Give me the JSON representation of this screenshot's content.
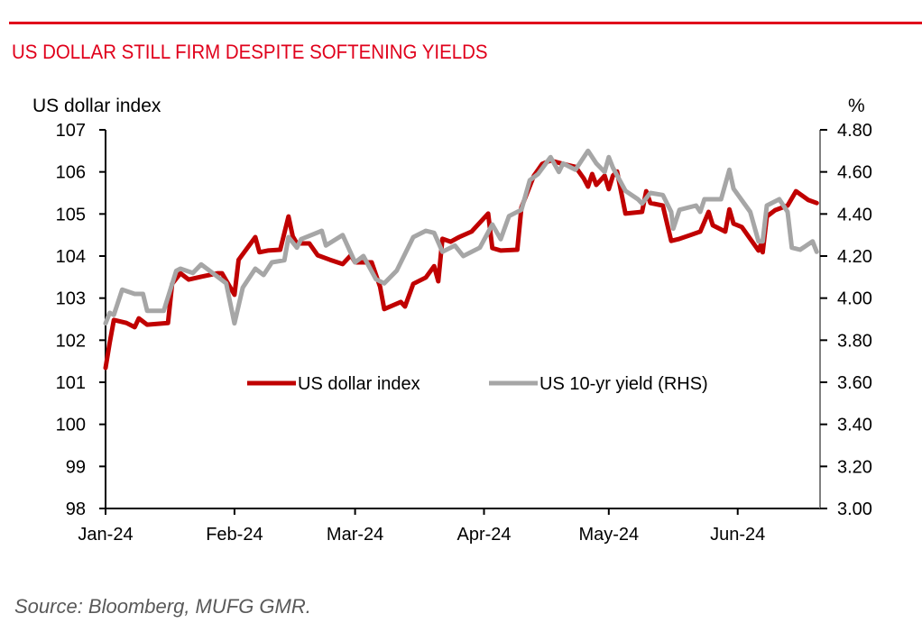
{
  "header": {
    "title": "US DOLLAR STILL FIRM DESPITE SOFTENING YIELDS"
  },
  "footer": {
    "source": "Source: Bloomberg, MUFG GMR."
  },
  "colors": {
    "title": "#e0001b",
    "dollar_series": "#c00000",
    "yield_series": "#a6a6a6"
  },
  "chart_data": {
    "type": "line",
    "title": "US DOLLAR STILL FIRM DESPITE SOFTENING YIELDS",
    "xlabel": "",
    "ylabel": "US dollar index",
    "y2label": "%",
    "x_unit": "days since 1 Jan 2024",
    "xlim": [
      0,
      172
    ],
    "ylim": [
      98,
      107
    ],
    "y2lim": [
      3.0,
      4.8
    ],
    "grid": false,
    "legend_position": "center",
    "x_ticks": [
      {
        "day": 0,
        "label": "Jan-24"
      },
      {
        "day": 31,
        "label": "Feb-24"
      },
      {
        "day": 60,
        "label": "Mar-24"
      },
      {
        "day": 91,
        "label": "Apr-24"
      },
      {
        "day": 121,
        "label": "May-24"
      },
      {
        "day": 152,
        "label": "Jun-24"
      }
    ],
    "y_ticks": [
      "98",
      "99",
      "100",
      "101",
      "102",
      "103",
      "104",
      "105",
      "106",
      "107"
    ],
    "y2_ticks": [
      "3.00",
      "3.20",
      "3.40",
      "3.60",
      "3.80",
      "4.00",
      "4.20",
      "4.40",
      "4.60",
      "4.80"
    ],
    "series": [
      {
        "name": "US dollar index",
        "axis": "left",
        "points": [
          [
            0,
            101.34
          ],
          [
            1,
            101.94
          ],
          [
            2,
            102.48
          ],
          [
            5,
            102.41
          ],
          [
            7,
            102.31
          ],
          [
            8,
            102.52
          ],
          [
            10,
            102.37
          ],
          [
            15,
            102.41
          ],
          [
            16,
            103.34
          ],
          [
            18,
            103.59
          ],
          [
            20,
            103.44
          ],
          [
            23,
            103.51
          ],
          [
            27,
            103.59
          ],
          [
            28,
            103.59
          ],
          [
            31,
            103.08
          ],
          [
            32,
            103.91
          ],
          [
            36,
            104.45
          ],
          [
            37,
            104.09
          ],
          [
            39,
            104.13
          ],
          [
            42,
            104.15
          ],
          [
            44,
            104.94
          ],
          [
            45,
            104.47
          ],
          [
            46,
            104.3
          ],
          [
            49,
            104.3
          ],
          [
            51,
            104.02
          ],
          [
            54,
            103.91
          ],
          [
            57,
            103.81
          ],
          [
            59,
            104.02
          ],
          [
            60,
            103.85
          ],
          [
            64,
            103.85
          ],
          [
            66,
            103.27
          ],
          [
            67,
            102.74
          ],
          [
            71,
            102.91
          ],
          [
            72,
            102.8
          ],
          [
            74,
            103.34
          ],
          [
            77,
            103.49
          ],
          [
            79,
            103.76
          ],
          [
            80,
            103.4
          ],
          [
            81,
            104.41
          ],
          [
            83,
            104.34
          ],
          [
            85,
            104.45
          ],
          [
            88,
            104.58
          ],
          [
            92,
            105.01
          ],
          [
            93,
            104.19
          ],
          [
            95,
            104.13
          ],
          [
            99,
            104.15
          ],
          [
            100,
            105.16
          ],
          [
            103,
            105.91
          ],
          [
            105,
            106.19
          ],
          [
            107,
            106.27
          ],
          [
            110,
            106.19
          ],
          [
            113,
            106.12
          ],
          [
            115,
            105.84
          ],
          [
            116,
            105.65
          ],
          [
            117,
            105.95
          ],
          [
            118,
            105.69
          ],
          [
            120,
            105.91
          ],
          [
            121,
            105.59
          ],
          [
            122,
            105.91
          ],
          [
            123,
            106.01
          ],
          [
            125,
            105.01
          ],
          [
            129,
            105.05
          ],
          [
            130,
            105.54
          ],
          [
            131,
            105.26
          ],
          [
            134,
            105.2
          ],
          [
            136,
            104.36
          ],
          [
            138,
            104.41
          ],
          [
            143,
            104.58
          ],
          [
            145,
            105.05
          ],
          [
            146,
            104.73
          ],
          [
            149,
            104.58
          ],
          [
            150,
            105.11
          ],
          [
            151,
            104.77
          ],
          [
            153,
            104.69
          ],
          [
            155,
            104.41
          ],
          [
            157,
            104.13
          ],
          [
            157.5,
            104.26
          ],
          [
            158,
            104.09
          ],
          [
            159,
            104.94
          ],
          [
            161,
            105.09
          ],
          [
            164,
            105.2
          ],
          [
            166,
            105.54
          ],
          [
            169,
            105.33
          ],
          [
            171,
            105.26
          ]
        ]
      },
      {
        "name": "US 10-yr yield (RHS)",
        "axis": "right",
        "points": [
          [
            0,
            3.88
          ],
          [
            1,
            3.93
          ],
          [
            2,
            3.92
          ],
          [
            4,
            4.04
          ],
          [
            7,
            4.02
          ],
          [
            9,
            4.02
          ],
          [
            10,
            3.94
          ],
          [
            14,
            3.94
          ],
          [
            17,
            4.13
          ],
          [
            18,
            4.14
          ],
          [
            21,
            4.12
          ],
          [
            23,
            4.16
          ],
          [
            25,
            4.13
          ],
          [
            29,
            4.07
          ],
          [
            31,
            3.88
          ],
          [
            33,
            4.05
          ],
          [
            36,
            4.14
          ],
          [
            38,
            4.11
          ],
          [
            40,
            4.17
          ],
          [
            43,
            4.18
          ],
          [
            44,
            4.29
          ],
          [
            46,
            4.24
          ],
          [
            47,
            4.28
          ],
          [
            52,
            4.32
          ],
          [
            53,
            4.25
          ],
          [
            57,
            4.3
          ],
          [
            60,
            4.17
          ],
          [
            62,
            4.2
          ],
          [
            65,
            4.09
          ],
          [
            67,
            4.07
          ],
          [
            70,
            4.13
          ],
          [
            74,
            4.29
          ],
          [
            77,
            4.32
          ],
          [
            79,
            4.31
          ],
          [
            81,
            4.22
          ],
          [
            84,
            4.25
          ],
          [
            86,
            4.2
          ],
          [
            90,
            4.24
          ],
          [
            93,
            4.35
          ],
          [
            95,
            4.28
          ],
          [
            97,
            4.39
          ],
          [
            100,
            4.42
          ],
          [
            102,
            4.56
          ],
          [
            104,
            4.59
          ],
          [
            107,
            4.67
          ],
          [
            109,
            4.6
          ],
          [
            110,
            4.64
          ],
          [
            113,
            4.61
          ],
          [
            116,
            4.7
          ],
          [
            118,
            4.64
          ],
          [
            120,
            4.6
          ],
          [
            121,
            4.67
          ],
          [
            122,
            4.62
          ],
          [
            125,
            4.51
          ],
          [
            128,
            4.47
          ],
          [
            129,
            4.45
          ],
          [
            131,
            4.5
          ],
          [
            134,
            4.49
          ],
          [
            136,
            4.41
          ],
          [
            136.5,
            4.33
          ],
          [
            138,
            4.42
          ],
          [
            142,
            4.44
          ],
          [
            143,
            4.41
          ],
          [
            144,
            4.47
          ],
          [
            148,
            4.47
          ],
          [
            150,
            4.61
          ],
          [
            151,
            4.52
          ],
          [
            155,
            4.41
          ],
          [
            157,
            4.27
          ],
          [
            158,
            4.27
          ],
          [
            159,
            4.44
          ],
          [
            162,
            4.47
          ],
          [
            164,
            4.41
          ],
          [
            165,
            4.24
          ],
          [
            167,
            4.23
          ],
          [
            170,
            4.27
          ],
          [
            171,
            4.22
          ]
        ]
      }
    ],
    "legend": [
      "US dollar index",
      "US 10-yr yield (RHS)"
    ]
  }
}
